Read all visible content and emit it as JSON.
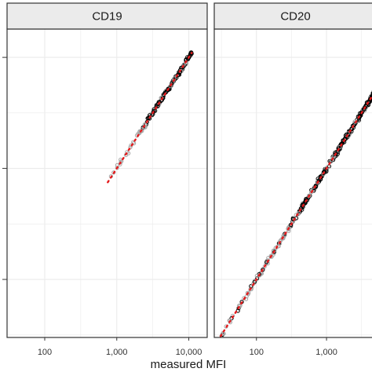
{
  "chart_data": {
    "type": "scatter",
    "xlabel": "measured MFI",
    "ylabel": "",
    "x_scale": "log",
    "y_scale": "log",
    "grid": true,
    "colors": {
      "strip_fill": "#ebebeb",
      "panel_border": "#333333",
      "grid": "#ebebeb",
      "points_black": "#000000",
      "points_grey": "#a6a6a6",
      "fit_line": "#e41a1c"
    },
    "panels": [
      {
        "strip_label": "CD19",
        "xlim": [
          30,
          18000
        ],
        "x_ticks": [
          {
            "value": 100,
            "label": "100"
          },
          {
            "value": 1000,
            "label": "1,000"
          },
          {
            "value": 10000,
            "label": "10,000"
          }
        ],
        "fit": {
          "x": [
            750,
            11000
          ],
          "y": [
            750,
            11000
          ]
        },
        "point_range": {
          "x_min": 750,
          "x_max": 11000
        }
      },
      {
        "strip_label": "CD20",
        "xlim": [
          25,
          5200
        ],
        "x_ticks": [
          {
            "value": 100,
            "label": "100"
          },
          {
            "value": 1000,
            "label": "1,000"
          }
        ],
        "fit": {
          "x": [
            28,
            5200
          ],
          "y": [
            28,
            5200
          ]
        },
        "point_range": {
          "x_min": 28,
          "x_max": 5200
        }
      }
    ],
    "ylim": [
      30,
      18000
    ],
    "y_ticks": [
      {
        "value": 100
      },
      {
        "value": 1000
      },
      {
        "value": 10000
      }
    ]
  }
}
